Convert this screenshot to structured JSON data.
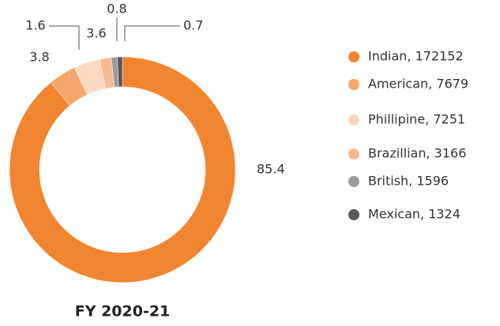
{
  "chart_data": {
    "type": "donut",
    "title": "FY 2020-21",
    "categories": [
      "Indian, 172152",
      "American, 7679",
      "Phillipine, 7251",
      "Brazillian, 3166",
      "British, 1596",
      "Mexican, 1324"
    ],
    "values": [
      85.4,
      3.8,
      3.6,
      1.6,
      0.8,
      0.7
    ],
    "colors": [
      "#f28530",
      "#f5a66a",
      "#fcd9c0",
      "#f8bb90",
      "#9b9b9e",
      "#58585a"
    ],
    "legend": "right"
  }
}
